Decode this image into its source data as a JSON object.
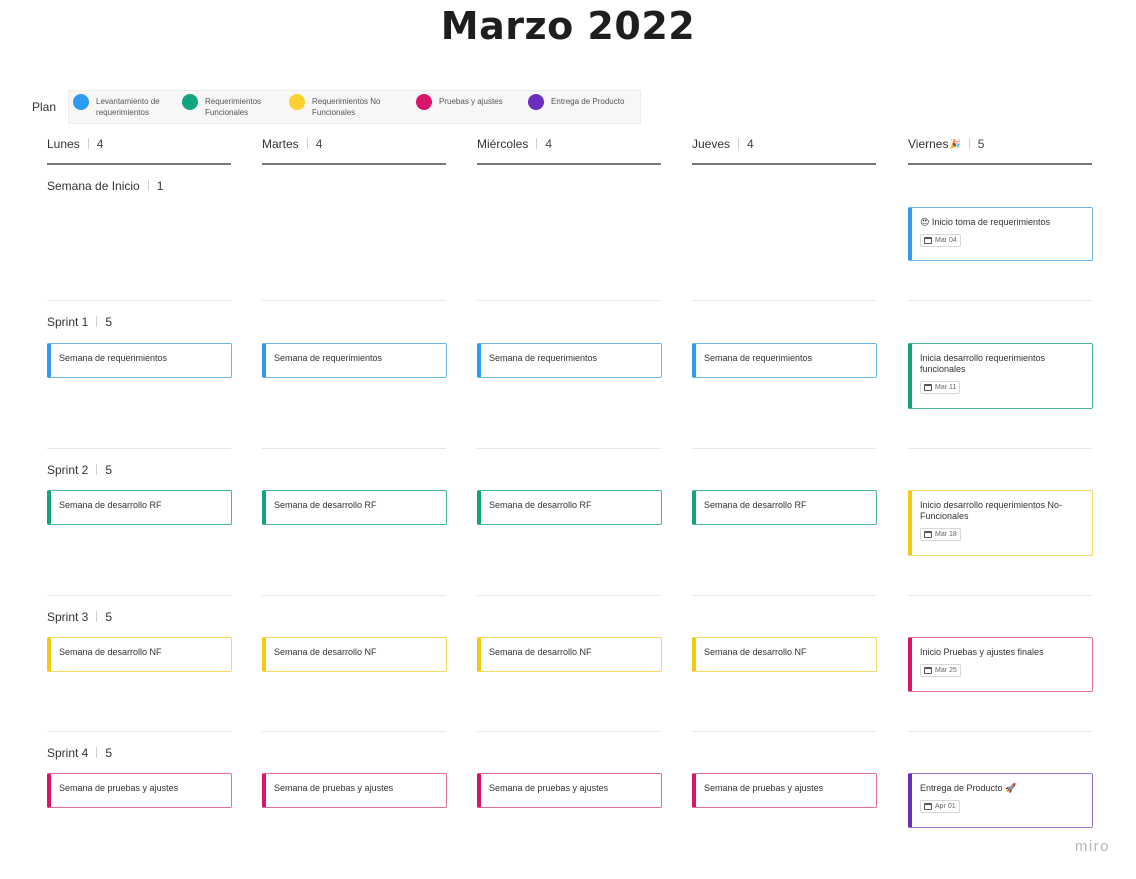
{
  "title": "Marzo 2022",
  "legend": {
    "label": "Plan",
    "items": [
      {
        "line1": "Levantamiento de",
        "line2": "requerimientos",
        "color": "#2d9bf0"
      },
      {
        "line1": "Requerimientos",
        "line2": "Funcionales",
        "color": "#12a37f"
      },
      {
        "line1": "Requerimientos No",
        "line2": "Funcionales",
        "color": "#fcd02f"
      },
      {
        "line1": "Pruebas y ajustes",
        "line2": "",
        "color": "#d9156b"
      },
      {
        "line1": "Entrega de Producto",
        "line2": "",
        "color": "#6a2dbd"
      }
    ]
  },
  "days": [
    {
      "name": "Lunes",
      "count": "4"
    },
    {
      "name": "Martes",
      "count": "4"
    },
    {
      "name": "Miércoles",
      "count": "4"
    },
    {
      "name": "Jueves",
      "count": "4"
    },
    {
      "name": "Viernes",
      "emoji": "🎉",
      "count": "5"
    }
  ],
  "rows": [
    {
      "label": "Semana de Inicio",
      "count": "1"
    },
    {
      "label": "Sprint 1",
      "count": "5"
    },
    {
      "label": "Sprint 2",
      "count": "5"
    },
    {
      "label": "Sprint 3",
      "count": "5"
    },
    {
      "label": "Sprint 4",
      "count": "5"
    }
  ],
  "cards": {
    "inicio_viernes": {
      "emoji": "😍",
      "text": "Inicio toma de requerimientos",
      "date": "Mar 04"
    },
    "sprint1": {
      "weekday_text": "Semana de requerimientos",
      "viernes": {
        "text": "Inicia desarrollo requerimientos funcionales",
        "date": "Mar 11"
      }
    },
    "sprint2": {
      "weekday_text": "Semana de desarrollo RF",
      "viernes": {
        "text": "Inicio desarrollo requerimientos No-Funcionales",
        "date": "Mar 18"
      }
    },
    "sprint3": {
      "weekday_text": "Semana de desarrollo NF",
      "viernes": {
        "text": "Inicio Pruebas y ajustes finales",
        "date": "Mar 25"
      }
    },
    "sprint4": {
      "weekday_text": "Semana de pruebas y ajustes",
      "viernes": {
        "text": "Entrega de Producto",
        "emoji": "🚀",
        "date": "Apr 01"
      }
    }
  },
  "watermark": "miro"
}
